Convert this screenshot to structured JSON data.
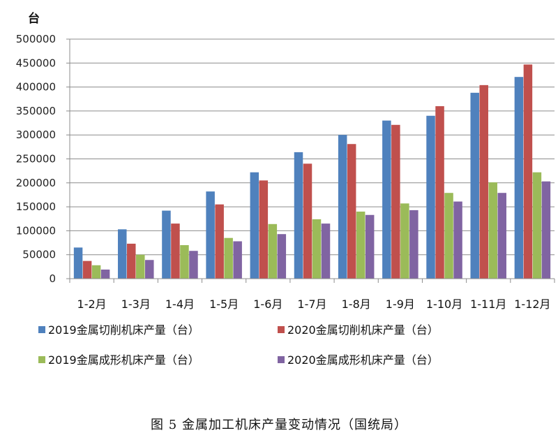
{
  "caption": "图 5  金属加工机床产量变动情况（国统局）",
  "chart_data": {
    "type": "bar",
    "unit_label": "台",
    "categories": [
      "1-2月",
      "1-3月",
      "1-4月",
      "1-5月",
      "1-6月",
      "1-7月",
      "1-8月",
      "1-9月",
      "1-10月",
      "1-11月",
      "1-12月"
    ],
    "ylim": [
      0,
      500000
    ],
    "yticks": [
      0,
      50000,
      100000,
      150000,
      200000,
      250000,
      300000,
      350000,
      400000,
      450000,
      500000
    ],
    "ytick_labels": [
      "0",
      "50000",
      "100000",
      "150000",
      "200000",
      "250000",
      "300000",
      "350000",
      "400000",
      "450000",
      "500000"
    ],
    "grid": true,
    "legend_position": "bottom",
    "series": [
      {
        "name": "2019金属切削机床产量（台）",
        "color": "#4F81BD",
        "values": [
          65000,
          103000,
          142000,
          182000,
          222000,
          264000,
          300000,
          330000,
          340000,
          388000,
          421000
        ]
      },
      {
        "name": "2020金属切削机床产量（台）",
        "color": "#C0504D",
        "values": [
          37000,
          73000,
          115000,
          155000,
          205000,
          240000,
          281000,
          321000,
          360000,
          404000,
          447000
        ]
      },
      {
        "name": "2019金属成形机床产量（台）",
        "color": "#9BBB59",
        "values": [
          28000,
          50000,
          70000,
          85000,
          114000,
          124000,
          140000,
          157000,
          179000,
          201000,
          222000
        ]
      },
      {
        "name": "2020金属成形机床产量（台）",
        "color": "#8064A2",
        "values": [
          19000,
          39000,
          58000,
          78000,
          93000,
          115000,
          133000,
          143000,
          161000,
          179000,
          203000
        ]
      }
    ]
  }
}
